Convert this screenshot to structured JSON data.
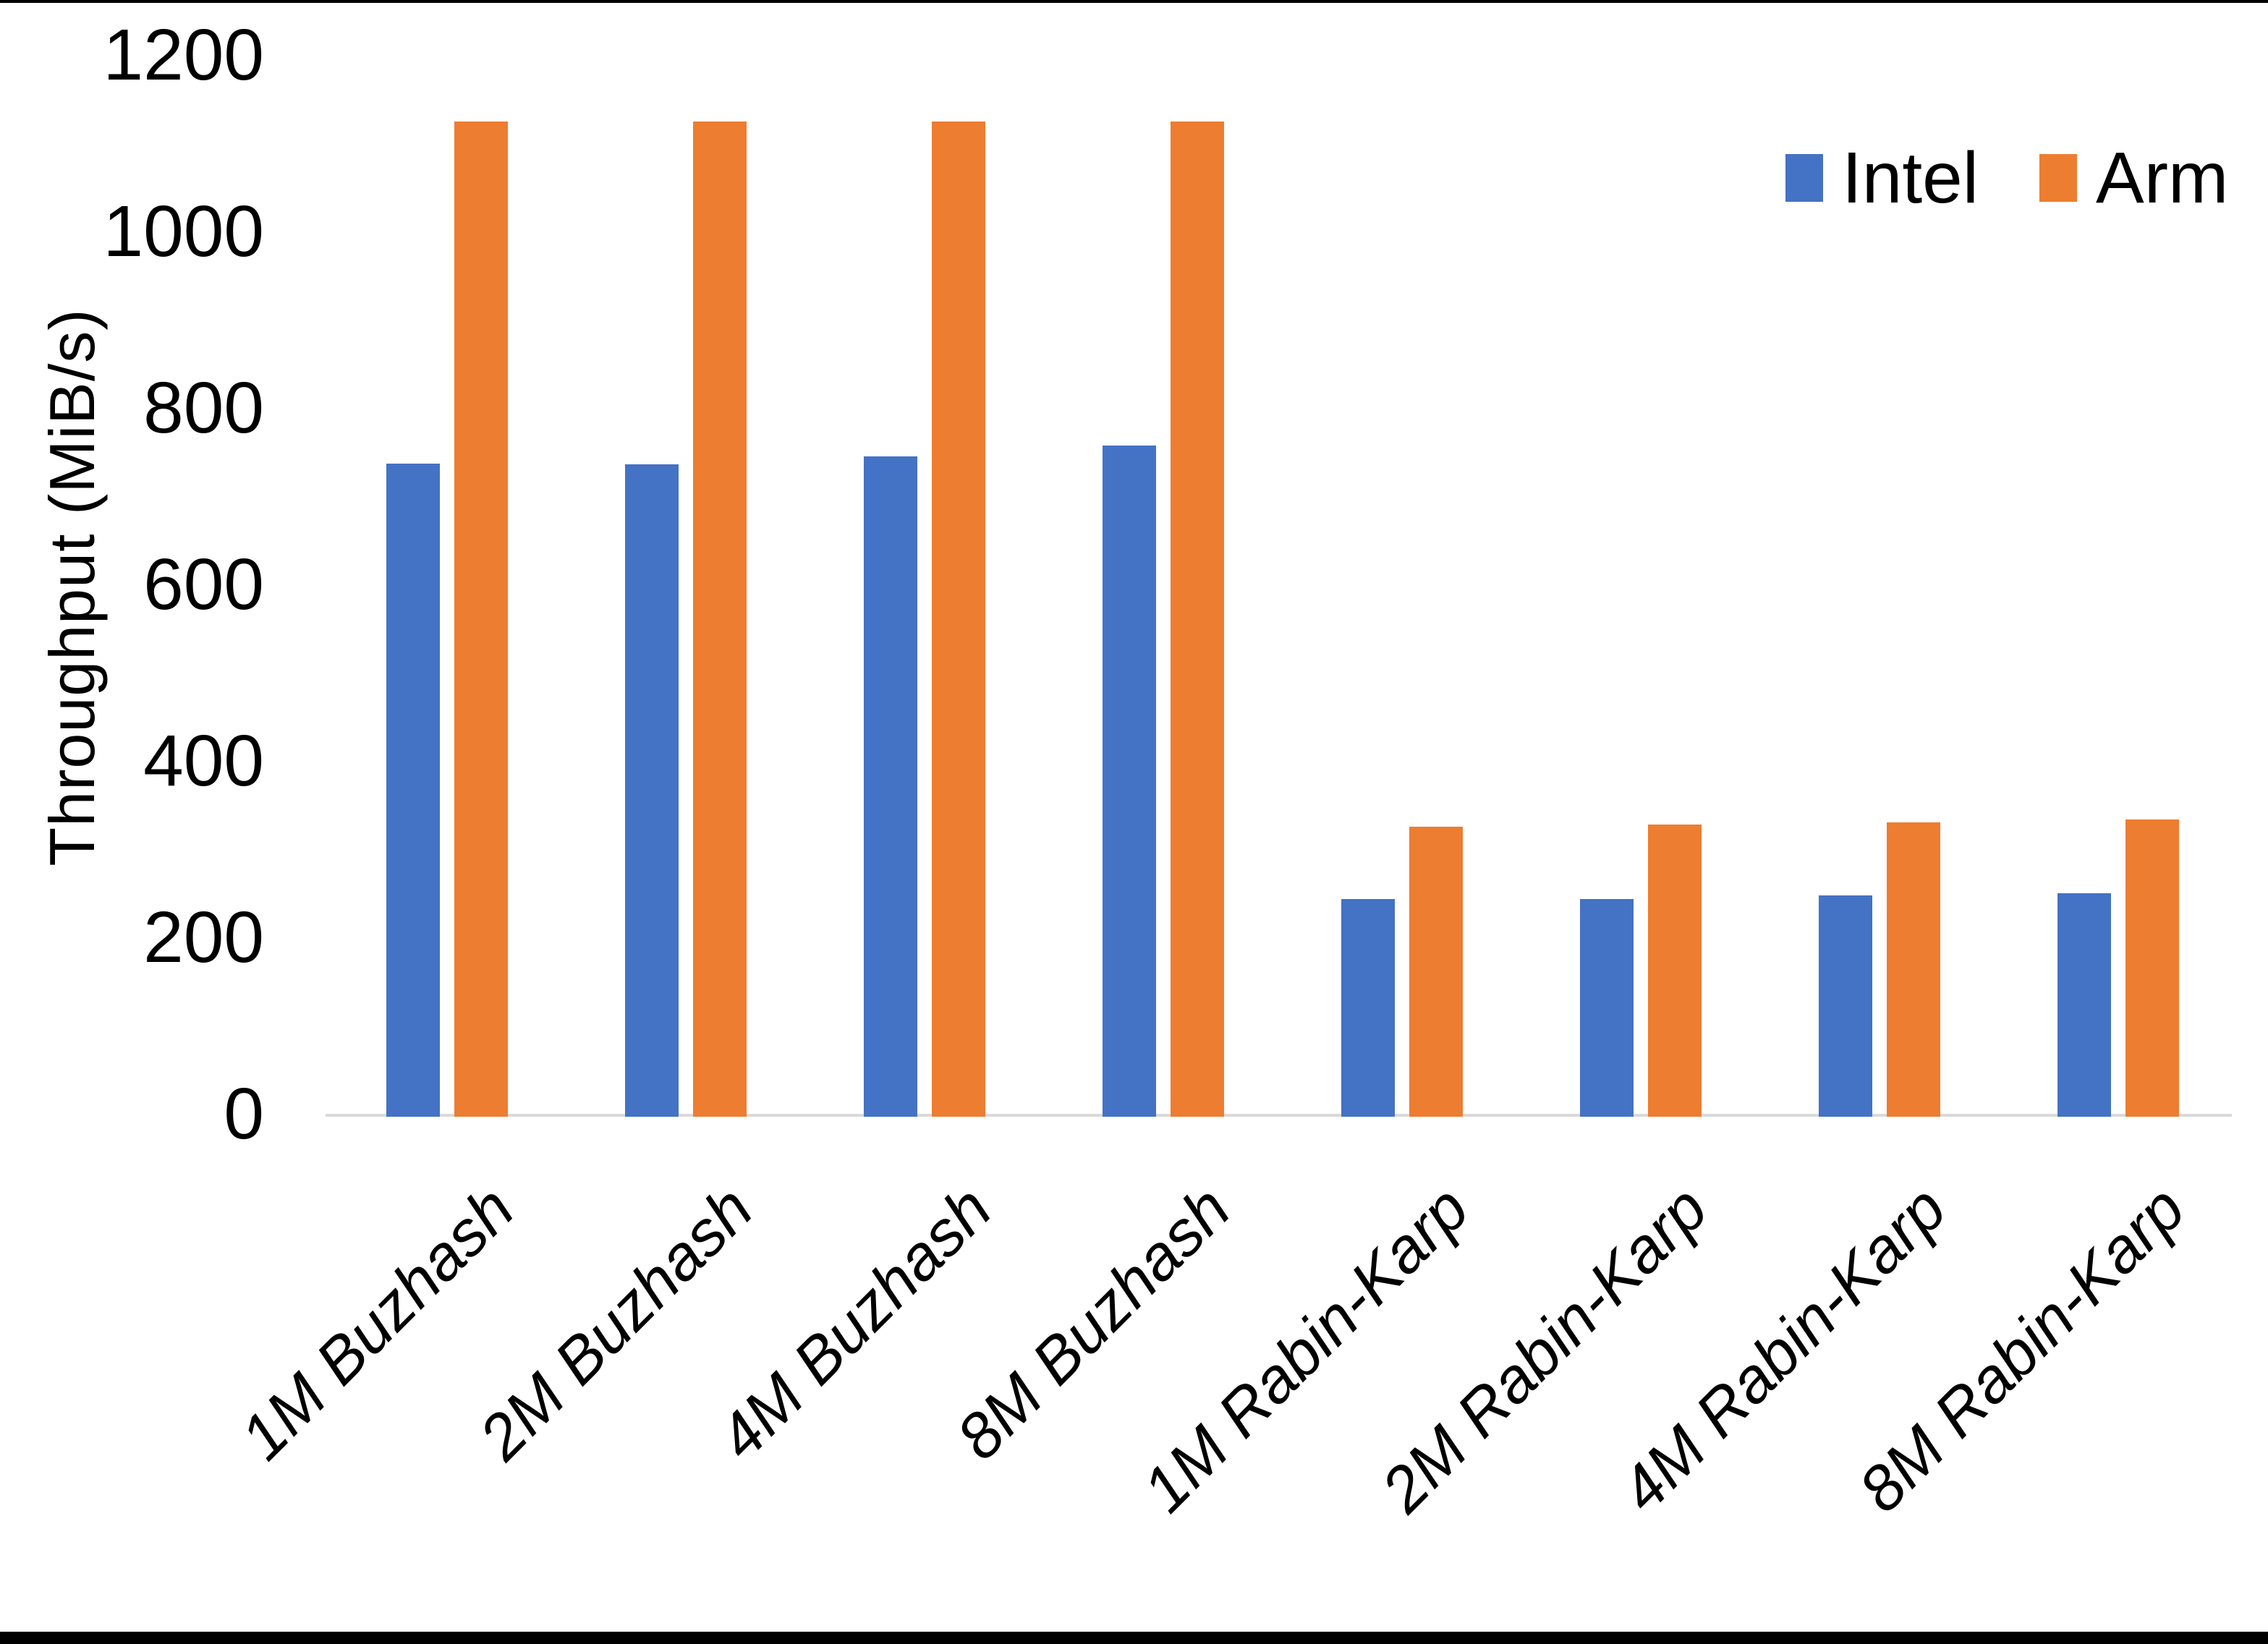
{
  "chart_data": {
    "type": "bar",
    "title": "",
    "xlabel": "",
    "ylabel": "Throughput (MiB/s)",
    "ylim": [
      0,
      1200
    ],
    "yticks": [
      0,
      200,
      400,
      600,
      800,
      1000,
      1200
    ],
    "grid": false,
    "legend_position": "top-right",
    "categories": [
      "1M Buzhash",
      "2M Buzhash",
      "4M Buzhash",
      "8M Buzhash",
      "1M Rabin-Karp",
      "2M Rabin-Karp",
      "4M Rabin-Karp",
      "8M Rabin-Karp"
    ],
    "series": [
      {
        "name": "Intel",
        "color": "#4472C4",
        "values": [
          740,
          739,
          748,
          761,
          247,
          247,
          251,
          253
        ]
      },
      {
        "name": "Arm",
        "color": "#ED7D31",
        "values": [
          1128,
          1128,
          1128,
          1128,
          329,
          331,
          334,
          337
        ]
      }
    ],
    "axis_line_color": "#d9d9d9"
  }
}
